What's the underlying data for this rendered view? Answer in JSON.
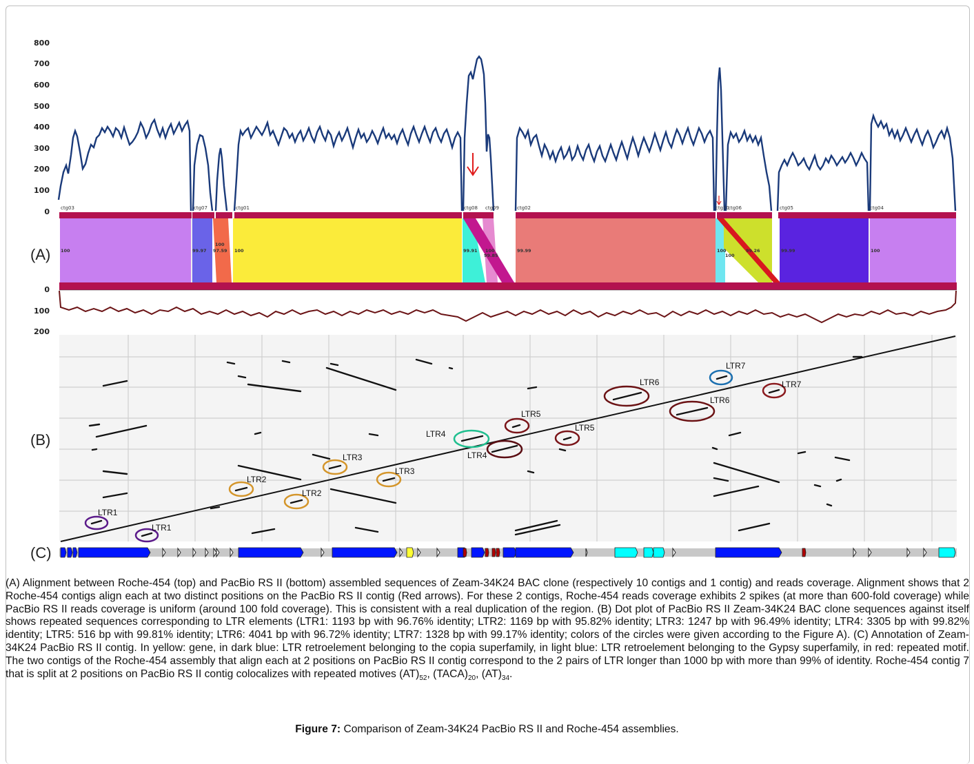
{
  "panel_labels": {
    "a": "(A)",
    "b": "(B)",
    "c": "(C)"
  },
  "coverage_axis_ticks": [
    "0",
    "100",
    "200",
    "300",
    "400",
    "500",
    "600",
    "700",
    "800"
  ],
  "lower_axis_ticks": [
    "0",
    "100",
    "200"
  ],
  "contigs": [
    {
      "name": "ctg03",
      "identity": "100",
      "color": "#c77ff0"
    },
    {
      "name": "ctg07",
      "identity": "99.97",
      "color": "#6a63e8"
    },
    {
      "name": "",
      "identity": "97.59",
      "identity_top": "100",
      "color": "#f26a4a"
    },
    {
      "name": "ctg01",
      "identity": "100",
      "color": "#fbeb3a"
    },
    {
      "name": "ctg08",
      "identity": "99.91",
      "color": "#3ef0d8"
    },
    {
      "name": "ctg09",
      "identity": "100",
      "identity_b": "99.85",
      "color": "#e68ad0"
    },
    {
      "name": "ctg02",
      "identity": "99.99",
      "color": "#e97b78"
    },
    {
      "name": "ctg10",
      "identity": "100",
      "color": "#6fe6f0"
    },
    {
      "name": "ctg06",
      "identity": "99.26",
      "identity_b": "100",
      "color": "#cde02c"
    },
    {
      "name": "ctg05",
      "identity": "99.99",
      "color": "#5a23e0"
    },
    {
      "name": "ctg04",
      "identity": "100",
      "color": "#c77ff0"
    }
  ],
  "ltr_labels": [
    "LTR1",
    "LTR1",
    "LTR2",
    "LTR2",
    "LTR3",
    "LTR3",
    "LTR4",
    "LTR4",
    "LTR5",
    "LTR5",
    "LTR6",
    "LTR6",
    "LTR7",
    "LTR7"
  ],
  "colors": {
    "copia": "#0015ff",
    "gypsy": "#00ffff",
    "gene": "#ffff33",
    "repeat": "#b00000",
    "bar": "#b3124f",
    "coverage_top": "#1a3a7a",
    "coverage_bottom": "#6b1416"
  },
  "caption": {
    "p1": "(A) Alignment between Roche-454 (top) and PacBio RS II (bottom) assembled sequences of Zeam-34K24 BAC clone (respectively 10 contigs and 1 contig) and reads coverage. Alignment shows that 2 Roche-454 contigs align each at two distinct positions on the PacBio RS II contig (Red arrows). For these 2 contigs, Roche-454 reads coverage exhibits 2 spikes (at more than 600-fold coverage) while PacBio RS II reads coverage is uniform (around 100 fold coverage). This is consistent with a real duplication of the region. (B) Dot plot of PacBio RS II Zeam-34K24 BAC clone sequences against itself shows repeated sequences corresponding to LTR elements (LTR1: 1193 bp with 96.76% identity; LTR2: 1169 bp with 95.82% identity; LTR3: 1247 bp with 96.49% identity; LTR4: 3305 bp with 99.82% identity; LTR5: 516 bp with 99.81% identity; LTR6: 4041 bp with 96.72% identity; LTR7: 1328 bp with 99.17% identity; colors of the circles were given according to the Figure A). (C) Annotation of Zeam-34K24 PacBio RS II contig. In yellow: gene, in dark blue: LTR retroelement belonging to the copia superfamily, in light blue: LTR retroelement belonging to the Gypsy superfamily, in red: repeated motif. The two contigs of the Roche-454 assembly that align each at 2 positions on PacBio RS II contig correspond to the 2 pairs of LTR longer than 1000 bp with more than 99% of identity. Roche-454 contig 7 that is split at 2 positions on PacBio RS II contig colocalizes with repeated motives (AT)",
    "sub1": "52",
    "sep1": ", (TACA)",
    "sub2": "20",
    "sep2": ", (AT)",
    "sub3": "34",
    "end": "."
  },
  "figure_title": {
    "label": "Figure 7:",
    "text": " Comparison of Zeam-34K24 PacBio RS II and Roche-454 assemblies."
  }
}
